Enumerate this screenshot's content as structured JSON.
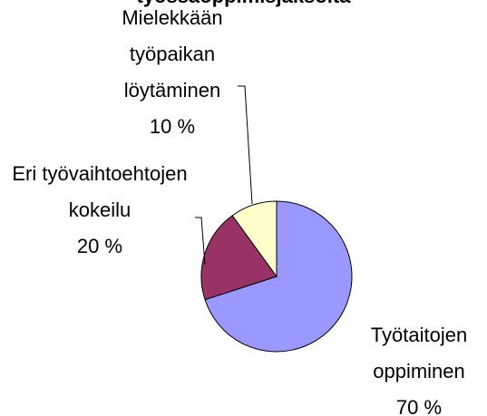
{
  "chart_data": {
    "type": "pie",
    "title": "työssäoppimisjaksolta",
    "categories": [
      "Työtaitojen oppiminen",
      "Eri työvaihtoehtojen kokeilu",
      "Mielekkään työpaikan löytäminen"
    ],
    "values": [
      70,
      20,
      10
    ],
    "value_labels": [
      "70 %",
      "20 %",
      "10 %"
    ],
    "colors": [
      "#9999ff",
      "#993366",
      "#ffffcc"
    ]
  }
}
